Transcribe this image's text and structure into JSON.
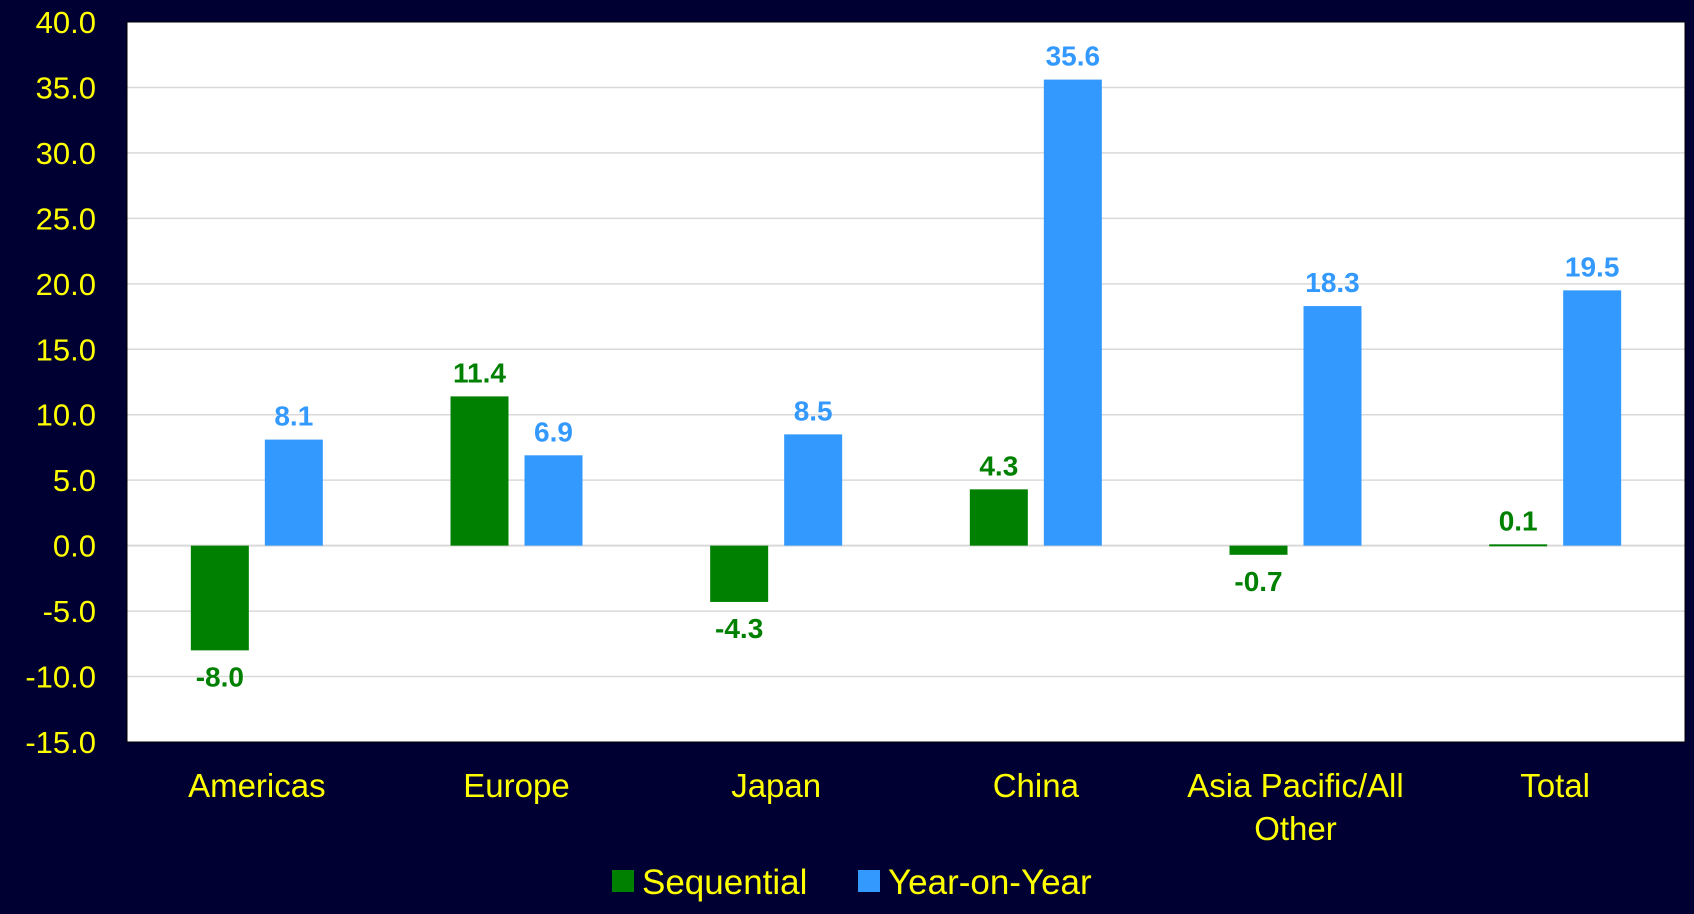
{
  "chart_data": {
    "type": "bar",
    "categories": [
      "Americas",
      "Europe",
      "Japan",
      "China",
      "Asia Pacific/All Other",
      "Total"
    ],
    "series": [
      {
        "name": "Sequential",
        "values": [
          -8.0,
          11.4,
          -4.3,
          4.3,
          -0.7,
          0.1
        ]
      },
      {
        "name": "Year-on-Year",
        "values": [
          8.1,
          6.9,
          8.5,
          35.6,
          18.3,
          19.5
        ]
      }
    ],
    "value_labels": [
      [
        "-8.0",
        "11.4",
        "-4.3",
        "4.3",
        "-0.7",
        "0.1"
      ],
      [
        "8.1",
        "6.9",
        "8.5",
        "35.6",
        "18.3",
        "19.5"
      ]
    ],
    "category_lines": [
      [
        "Americas"
      ],
      [
        "Europe"
      ],
      [
        "Japan"
      ],
      [
        "China"
      ],
      [
        "Asia Pacific/All",
        "Other"
      ],
      [
        "Total"
      ]
    ],
    "ylim": [
      -15,
      40
    ],
    "yticks": [
      "-15.0",
      "-10.0",
      "-5.0",
      "0.0",
      "5.0",
      "10.0",
      "15.0",
      "20.0",
      "25.0",
      "30.0",
      "35.0",
      "40.0"
    ],
    "grid": true,
    "legend": "bottom-center",
    "colors": {
      "background": "#000033",
      "plot_area": "#ffffff",
      "gridline": "#d9d9d9",
      "axis_text": "#ffff00",
      "sequential": "#008000",
      "year_on_year": "#3399ff",
      "legend_text": "#ffff00"
    }
  }
}
